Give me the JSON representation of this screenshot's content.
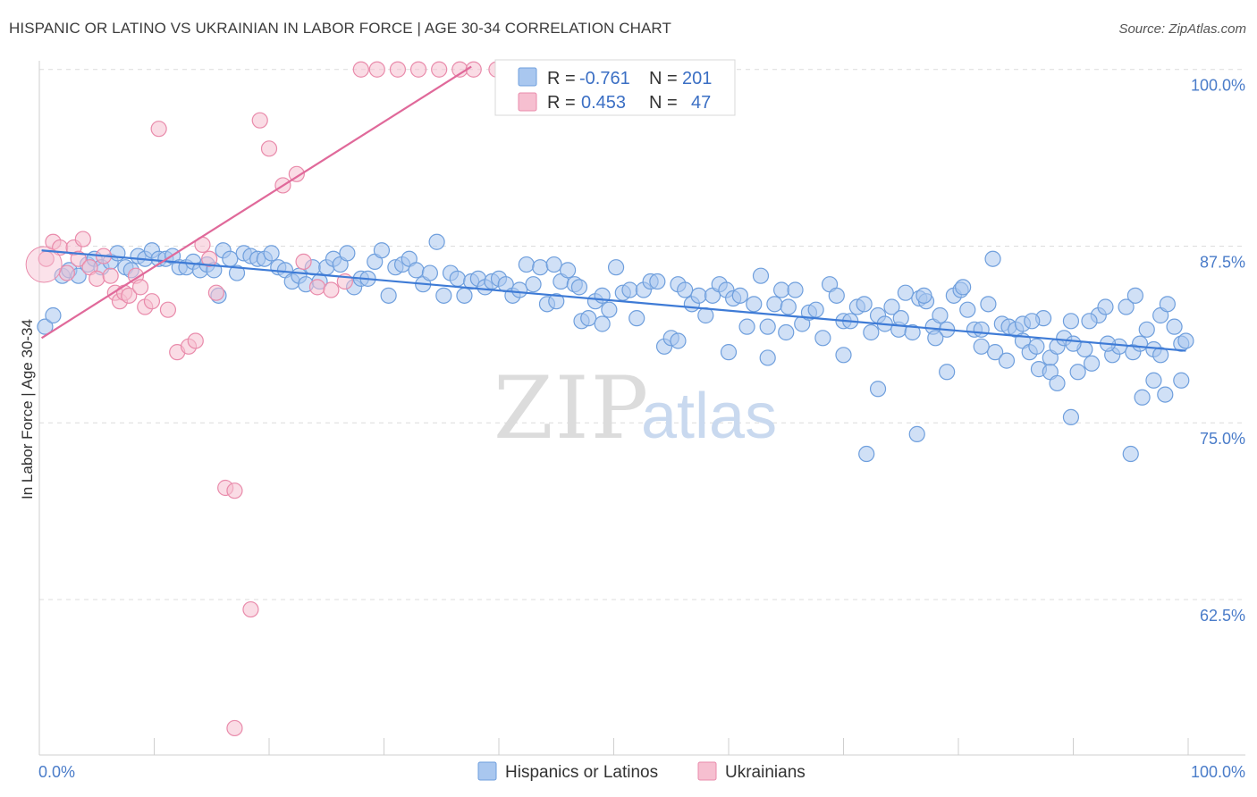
{
  "title": "HISPANIC OR LATINO VS UKRAINIAN IN LABOR FORCE | AGE 30-34 CORRELATION CHART",
  "source": "Source: ZipAtlas.com",
  "watermark": {
    "zip": "ZIP",
    "atlas": "atlas"
  },
  "chart_data": {
    "type": "scatter",
    "title": "HISPANIC OR LATINO VS UKRAINIAN IN LABOR FORCE | AGE 30-34 CORRELATION CHART",
    "xlabel": "",
    "ylabel": "In Labor Force | Age 30-34",
    "xlim": [
      0,
      100
    ],
    "ylim": [
      51.5,
      101.5
    ],
    "x_tick_labels": {
      "left": "0.0%",
      "right": "100.0%"
    },
    "y_ticks": [
      {
        "value": 100.0,
        "label": "100.0%"
      },
      {
        "value": 87.5,
        "label": "87.5%"
      },
      {
        "value": 75.0,
        "label": "75.0%"
      },
      {
        "value": 62.5,
        "label": "62.5%"
      }
    ],
    "legend": {
      "rows": [
        {
          "r_label": "R =",
          "r_value": "-0.761",
          "n_label": "N =",
          "n_value": "201",
          "color": "#a9c7ef",
          "stroke": "#6f9fdd"
        },
        {
          "r_label": "R =",
          "r_value": "0.453",
          "n_label": "N =",
          "n_value": "47",
          "color": "#f6bfd0",
          "stroke": "#e98bab"
        }
      ]
    },
    "series": [
      {
        "name": "Hispanics or Latinos",
        "color": "#a9c7ef",
        "stroke": "#6f9fdd",
        "trend": {
          "x": [
            0.2,
            99.8
          ],
          "y": [
            87.2,
            80.1
          ],
          "color": "#3e7bd6"
        },
        "points": [
          [
            0.5,
            81.8
          ],
          [
            1.2,
            82.6
          ],
          [
            2.0,
            85.4
          ],
          [
            2.6,
            85.8
          ],
          [
            3.4,
            85.4
          ],
          [
            4.2,
            86.2
          ],
          [
            4.8,
            86.6
          ],
          [
            5.4,
            86.0
          ],
          [
            6.2,
            86.4
          ],
          [
            6.8,
            87.0
          ],
          [
            7.5,
            86.0
          ],
          [
            8.0,
            85.8
          ],
          [
            8.6,
            86.8
          ],
          [
            9.2,
            86.6
          ],
          [
            9.8,
            87.2
          ],
          [
            10.4,
            86.6
          ],
          [
            11.0,
            86.6
          ],
          [
            11.6,
            86.8
          ],
          [
            12.2,
            86.0
          ],
          [
            12.8,
            86.0
          ],
          [
            13.4,
            86.4
          ],
          [
            14.0,
            85.8
          ],
          [
            14.6,
            86.2
          ],
          [
            15.2,
            85.8
          ],
          [
            15.6,
            84.0
          ],
          [
            16.0,
            87.2
          ],
          [
            16.6,
            86.6
          ],
          [
            17.2,
            85.6
          ],
          [
            17.8,
            87.0
          ],
          [
            18.4,
            86.8
          ],
          [
            19.0,
            86.6
          ],
          [
            19.6,
            86.6
          ],
          [
            20.2,
            87.0
          ],
          [
            20.8,
            86.0
          ],
          [
            21.4,
            85.8
          ],
          [
            22.0,
            85.0
          ],
          [
            22.6,
            85.4
          ],
          [
            23.2,
            84.8
          ],
          [
            23.8,
            86.0
          ],
          [
            24.4,
            85.0
          ],
          [
            25.0,
            86.0
          ],
          [
            25.6,
            86.6
          ],
          [
            26.2,
            86.2
          ],
          [
            26.8,
            87.0
          ],
          [
            27.4,
            84.6
          ],
          [
            28.0,
            85.2
          ],
          [
            28.6,
            85.2
          ],
          [
            29.2,
            86.4
          ],
          [
            29.8,
            87.2
          ],
          [
            30.4,
            84.0
          ],
          [
            31.0,
            86.0
          ],
          [
            31.6,
            86.2
          ],
          [
            32.2,
            86.6
          ],
          [
            32.8,
            85.8
          ],
          [
            33.4,
            84.8
          ],
          [
            34.0,
            85.6
          ],
          [
            34.6,
            87.8
          ],
          [
            35.2,
            84.0
          ],
          [
            35.8,
            85.6
          ],
          [
            36.4,
            85.2
          ],
          [
            37.0,
            84.0
          ],
          [
            37.6,
            85.0
          ],
          [
            38.2,
            85.2
          ],
          [
            38.8,
            84.6
          ],
          [
            39.4,
            85.0
          ],
          [
            40.0,
            85.2
          ],
          [
            40.6,
            84.8
          ],
          [
            41.2,
            84.0
          ],
          [
            41.8,
            84.4
          ],
          [
            42.4,
            86.2
          ],
          [
            43.0,
            84.8
          ],
          [
            43.6,
            86.0
          ],
          [
            44.2,
            83.4
          ],
          [
            44.8,
            86.2
          ],
          [
            45.4,
            85.0
          ],
          [
            46.0,
            85.8
          ],
          [
            46.6,
            84.8
          ],
          [
            47.2,
            82.2
          ],
          [
            47.8,
            82.4
          ],
          [
            48.4,
            83.6
          ],
          [
            49.0,
            84.0
          ],
          [
            49.6,
            83.0
          ],
          [
            50.2,
            86.0
          ],
          [
            50.8,
            84.2
          ],
          [
            51.4,
            84.4
          ],
          [
            52.0,
            82.4
          ],
          [
            52.6,
            84.4
          ],
          [
            53.2,
            85.0
          ],
          [
            53.8,
            85.0
          ],
          [
            54.4,
            80.4
          ],
          [
            55.0,
            81.0
          ],
          [
            55.6,
            84.8
          ],
          [
            56.2,
            84.4
          ],
          [
            56.8,
            83.4
          ],
          [
            57.4,
            84.0
          ],
          [
            58.0,
            82.6
          ],
          [
            58.6,
            84.0
          ],
          [
            59.2,
            84.8
          ],
          [
            59.8,
            84.4
          ],
          [
            60.4,
            83.8
          ],
          [
            61.0,
            84.0
          ],
          [
            61.6,
            81.8
          ],
          [
            62.2,
            83.4
          ],
          [
            62.8,
            85.4
          ],
          [
            63.4,
            81.8
          ],
          [
            64.0,
            83.4
          ],
          [
            64.6,
            84.4
          ],
          [
            65.2,
            83.2
          ],
          [
            65.8,
            84.4
          ],
          [
            66.4,
            82.0
          ],
          [
            67.0,
            82.8
          ],
          [
            67.6,
            83.0
          ],
          [
            68.2,
            81.0
          ],
          [
            68.8,
            84.8
          ],
          [
            69.4,
            84.0
          ],
          [
            70.0,
            82.2
          ],
          [
            70.6,
            82.2
          ],
          [
            71.2,
            83.2
          ],
          [
            71.8,
            83.4
          ],
          [
            72.4,
            81.4
          ],
          [
            73.0,
            82.6
          ],
          [
            73.6,
            82.0
          ],
          [
            74.2,
            83.2
          ],
          [
            74.8,
            81.6
          ],
          [
            75.4,
            84.2
          ],
          [
            76.0,
            81.4
          ],
          [
            76.6,
            83.8
          ],
          [
            77.2,
            83.6
          ],
          [
            77.8,
            81.8
          ],
          [
            78.4,
            82.6
          ],
          [
            79.0,
            81.6
          ],
          [
            79.6,
            84.0
          ],
          [
            80.2,
            84.4
          ],
          [
            80.8,
            83.0
          ],
          [
            81.4,
            81.6
          ],
          [
            82.0,
            81.6
          ],
          [
            82.6,
            83.4
          ],
          [
            83.2,
            80.0
          ],
          [
            83.8,
            82.0
          ],
          [
            84.4,
            81.8
          ],
          [
            85.0,
            81.6
          ],
          [
            85.6,
            80.8
          ],
          [
            86.2,
            80.0
          ],
          [
            86.8,
            80.4
          ],
          [
            87.4,
            82.4
          ],
          [
            88.0,
            79.6
          ],
          [
            88.6,
            80.4
          ],
          [
            89.2,
            81.0
          ],
          [
            89.8,
            82.2
          ],
          [
            90.4,
            78.6
          ],
          [
            91.0,
            80.2
          ],
          [
            91.6,
            79.2
          ],
          [
            92.2,
            82.6
          ],
          [
            92.8,
            83.2
          ],
          [
            93.4,
            79.8
          ],
          [
            94.0,
            80.4
          ],
          [
            94.6,
            83.2
          ],
          [
            95.2,
            80.0
          ],
          [
            95.8,
            80.6
          ],
          [
            96.4,
            81.6
          ],
          [
            97.0,
            80.2
          ],
          [
            97.6,
            82.6
          ],
          [
            98.2,
            83.4
          ],
          [
            98.8,
            81.8
          ],
          [
            99.4,
            80.6
          ],
          [
            99.8,
            80.8
          ],
          [
            83.0,
            86.6
          ],
          [
            80.4,
            84.6
          ],
          [
            45.0,
            83.6
          ],
          [
            47.0,
            84.6
          ],
          [
            49.0,
            82.0
          ],
          [
            55.6,
            80.8
          ],
          [
            60.0,
            80.0
          ],
          [
            63.4,
            79.6
          ],
          [
            65.0,
            81.4
          ],
          [
            70.0,
            79.8
          ],
          [
            73.0,
            77.4
          ],
          [
            75.0,
            82.4
          ],
          [
            77.0,
            84.0
          ],
          [
            78.0,
            81.0
          ],
          [
            79.0,
            78.6
          ],
          [
            82.0,
            80.4
          ],
          [
            84.2,
            79.4
          ],
          [
            85.6,
            82.0
          ],
          [
            86.4,
            82.2
          ],
          [
            87.0,
            78.8
          ],
          [
            88.0,
            78.6
          ],
          [
            88.6,
            77.8
          ],
          [
            90.0,
            80.6
          ],
          [
            91.4,
            82.2
          ],
          [
            93.0,
            80.6
          ],
          [
            95.4,
            84.0
          ],
          [
            96.0,
            76.8
          ],
          [
            97.0,
            78.0
          ],
          [
            98.0,
            77.0
          ],
          [
            99.4,
            78.0
          ],
          [
            76.4,
            74.2
          ],
          [
            72.0,
            72.8
          ],
          [
            89.8,
            75.4
          ],
          [
            95.0,
            72.8
          ],
          [
            97.6,
            79.8
          ]
        ]
      },
      {
        "name": "Ukrainians",
        "color": "#f6bfd0",
        "stroke": "#e98bab",
        "trend": {
          "x": [
            0.2,
            37.6
          ],
          "y": [
            81.0,
            100.2
          ],
          "color": "#e0699a"
        },
        "points": [
          [
            0.6,
            86.6
          ],
          [
            1.2,
            87.8
          ],
          [
            1.8,
            87.4
          ],
          [
            2.4,
            85.6
          ],
          [
            3.0,
            87.4
          ],
          [
            3.4,
            86.6
          ],
          [
            3.8,
            88.0
          ],
          [
            4.4,
            86.0
          ],
          [
            5.0,
            85.2
          ],
          [
            5.6,
            86.8
          ],
          [
            6.2,
            85.4
          ],
          [
            6.6,
            84.2
          ],
          [
            7.0,
            83.6
          ],
          [
            7.4,
            84.2
          ],
          [
            7.8,
            84.0
          ],
          [
            8.4,
            85.4
          ],
          [
            8.8,
            84.6
          ],
          [
            9.2,
            83.2
          ],
          [
            9.8,
            83.6
          ],
          [
            10.4,
            95.8
          ],
          [
            11.2,
            83.0
          ],
          [
            12.0,
            80.0
          ],
          [
            13.0,
            80.4
          ],
          [
            13.6,
            80.8
          ],
          [
            14.2,
            87.6
          ],
          [
            14.8,
            86.6
          ],
          [
            15.4,
            84.2
          ],
          [
            16.2,
            70.4
          ],
          [
            17.0,
            70.2
          ],
          [
            18.4,
            61.8
          ],
          [
            19.2,
            96.4
          ],
          [
            20.0,
            94.4
          ],
          [
            21.2,
            91.8
          ],
          [
            22.4,
            92.6
          ],
          [
            23.0,
            86.4
          ],
          [
            24.2,
            84.6
          ],
          [
            25.4,
            84.4
          ],
          [
            26.6,
            85.0
          ],
          [
            28.0,
            100.0
          ],
          [
            29.4,
            100.0
          ],
          [
            31.2,
            100.0
          ],
          [
            33.0,
            100.0
          ],
          [
            34.8,
            100.0
          ],
          [
            36.6,
            100.0
          ],
          [
            37.8,
            100.0
          ],
          [
            39.8,
            100.0
          ],
          [
            17.0,
            53.4
          ]
        ]
      }
    ]
  },
  "bottom_legend": [
    {
      "label": "Hispanics or Latinos",
      "color": "#a9c7ef",
      "stroke": "#6f9fdd"
    },
    {
      "label": "Ukrainians",
      "color": "#f6bfd0",
      "stroke": "#e98bab"
    }
  ]
}
